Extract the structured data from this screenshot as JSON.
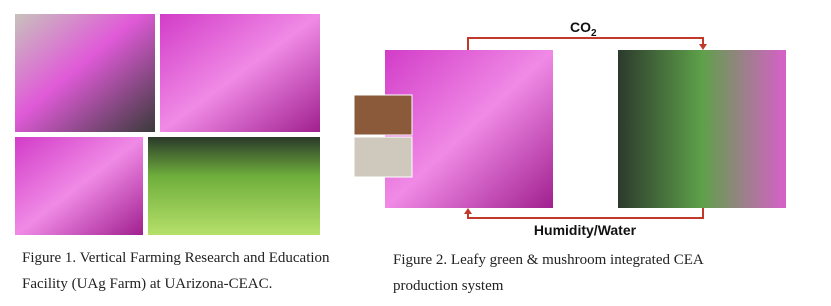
{
  "figure1": {
    "caption_lines": [
      "Figure 1. Vertical Farming Research and Education",
      "Facility (UAg Farm) at UArizona-CEAC."
    ]
  },
  "figure2": {
    "co2": {
      "main": "CO",
      "sub": "2"
    },
    "humidity": "Humidity/Water",
    "caption_lines": [
      "Figure 2. Leafy green & mushroom integrated CEA",
      "production system"
    ]
  }
}
